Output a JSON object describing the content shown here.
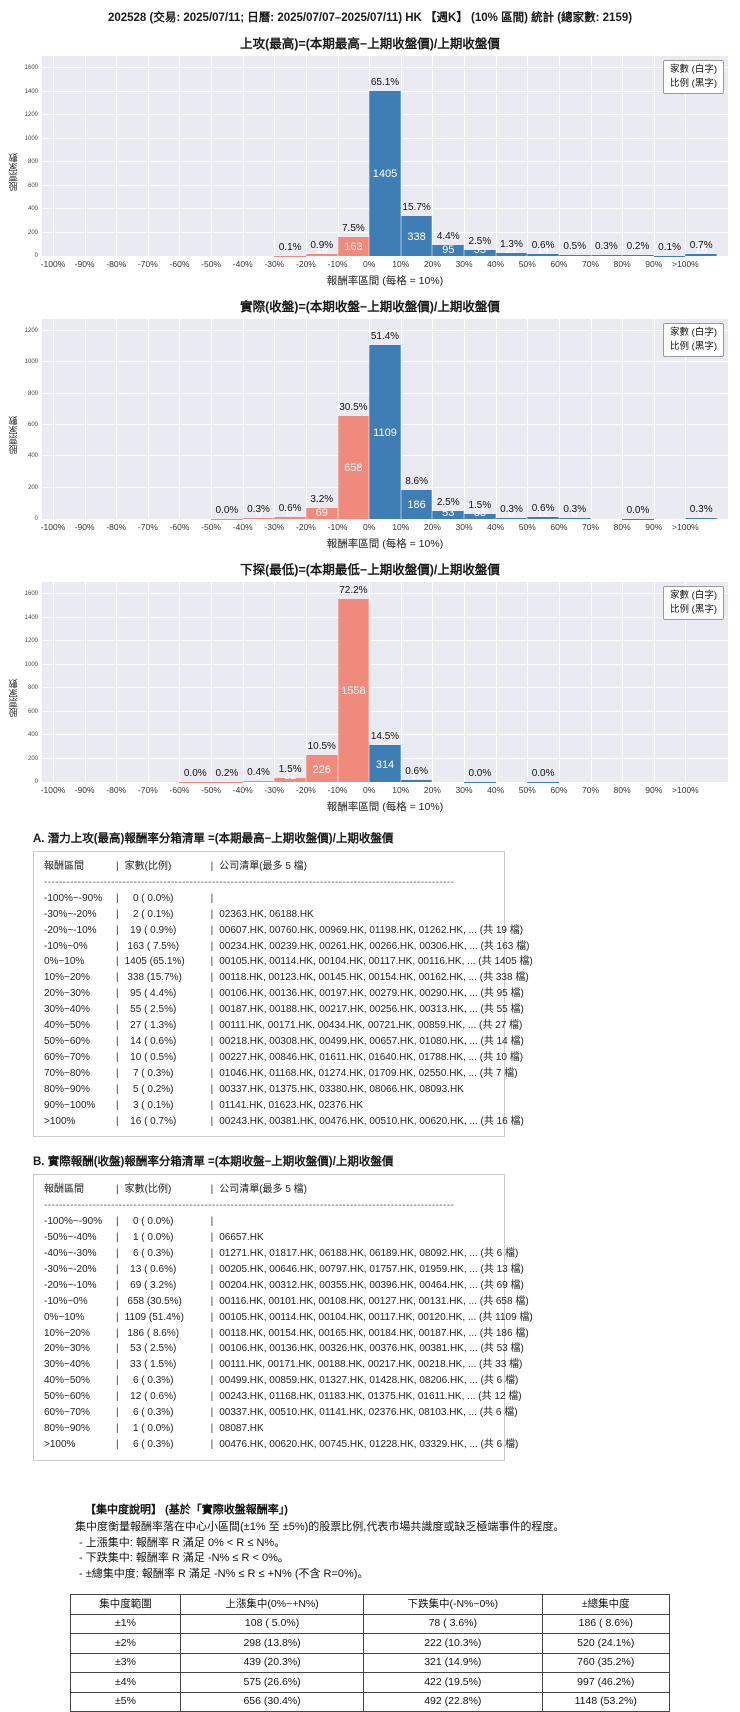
{
  "page_title": "202528 (交易: 2025/07/11; 日曆: 2025/07/07–2025/07/11) HK 【週K】 (10% 區間) 統計 (總家數: 2159)",
  "total_count": 2159,
  "colors": {
    "up_bar": "#3e7eb4",
    "down_bar": "#ef8a7c",
    "plot_bg": "#eaeaf2",
    "grid": "#ffffff"
  },
  "legend": [
    "家數 (白字)",
    "比例 (黑字)"
  ],
  "ylabel": "股票家數",
  "xlabel": "報酬率區間 (每格 = 10%)",
  "x_ticks": [
    "-100%",
    "-90%",
    "-80%",
    "-70%",
    "-60%",
    "-50%",
    "-40%",
    "-30%",
    "-20%",
    "-10%",
    "0%",
    "10%",
    "20%",
    "30%",
    "40%",
    "50%",
    "60%",
    "70%",
    "80%",
    "90%",
    ">100%"
  ],
  "chart_data": [
    {
      "type": "bar",
      "title": "上攻(最高)=(本期最高−上期收盤價)/上期收盤價",
      "ymax": 1600,
      "ytick_step": 200,
      "grid": true,
      "legend_position": "top-right",
      "bin_edges": [
        "-100%",
        "-90%",
        "-80%",
        "-70%",
        "-60%",
        "-50%",
        "-40%",
        "-30%",
        "-20%",
        "-10%",
        "0%",
        "10%",
        "20%",
        "30%",
        "40%",
        "50%",
        "60%",
        "70%",
        "80%",
        "90%",
        ">100%",
        "end"
      ],
      "counts": [
        0,
        0,
        0,
        0,
        0,
        0,
        0,
        2,
        19,
        163,
        1405,
        338,
        95,
        55,
        27,
        14,
        10,
        7,
        5,
        3,
        16
      ],
      "pcts": [
        "",
        "",
        "",
        "",
        "",
        "",
        "",
        "0.1%",
        "0.9%",
        "7.5%",
        "65.1%",
        "15.7%",
        "4.4%",
        "2.5%",
        "1.3%",
        "0.6%",
        "0.5%",
        "0.3%",
        "0.2%",
        "0.1%",
        "0.7%"
      ]
    },
    {
      "type": "bar",
      "title": "實際(收盤)=(本期收盤−上期收盤價)/上期收盤價",
      "ymax": 1200,
      "ytick_step": 200,
      "grid": true,
      "legend_position": "top-right",
      "bin_edges": [
        "-100%",
        "-90%",
        "-80%",
        "-70%",
        "-60%",
        "-50%",
        "-40%",
        "-30%",
        "-20%",
        "-10%",
        "0%",
        "10%",
        "20%",
        "30%",
        "40%",
        "50%",
        "60%",
        "70%",
        "80%",
        "90%",
        ">100%",
        "end"
      ],
      "counts": [
        0,
        0,
        0,
        0,
        0,
        1,
        6,
        13,
        69,
        658,
        1109,
        186,
        53,
        33,
        6,
        12,
        6,
        0,
        1,
        0,
        6
      ],
      "pcts": [
        "",
        "",
        "",
        "",
        "",
        "0.0%",
        "0.3%",
        "0.6%",
        "3.2%",
        "30.5%",
        "51.4%",
        "8.6%",
        "2.5%",
        "1.5%",
        "0.3%",
        "0.6%",
        "0.3%",
        "",
        "0.0%",
        "",
        "0.3%"
      ]
    },
    {
      "type": "bar",
      "title": "下探(最低)=(本期最低−上期收盤價)/上期收盤價",
      "ymax": 1600,
      "ytick_step": 200,
      "grid": true,
      "legend_position": "top-right",
      "bin_edges": [
        "-100%",
        "-90%",
        "-80%",
        "-70%",
        "-60%",
        "-50%",
        "-40%",
        "-30%",
        "-20%",
        "-10%",
        "0%",
        "10%",
        "20%",
        "30%",
        "40%",
        "50%",
        "60%",
        "70%",
        "80%",
        "90%",
        ">100%",
        "end"
      ],
      "counts": [
        0,
        0,
        0,
        0,
        1,
        4,
        9,
        32,
        226,
        1558,
        314,
        13,
        0,
        1,
        0,
        1,
        0,
        0,
        0,
        0,
        0
      ],
      "pcts": [
        "",
        "",
        "",
        "",
        "0.0%",
        "0.2%",
        "0.4%",
        "1.5%",
        "10.5%",
        "72.2%",
        "14.5%",
        "0.6%",
        "",
        "0.0%",
        "",
        "0.0%",
        "",
        "",
        "",
        "",
        ""
      ]
    }
  ],
  "bin_lists": [
    {
      "title": "A. 潛力上攻(最高)報酬率分箱清單 =(本期最高−上期收盤價)/上期收盤價",
      "header": [
        "報酬區間",
        "家數(比例)",
        "公司清單(最多 5 檔)"
      ],
      "separator": "--------------------------------------------------------------------------------------------------------------",
      "rows": [
        [
          "-100%~-90%",
          "   0 ( 0.0%)",
          ""
        ],
        [
          "-30%~-20%",
          "   2 ( 0.1%)",
          "02363.HK, 06188.HK"
        ],
        [
          "-20%~-10%",
          "  19 ( 0.9%)",
          "00607.HK, 00760.HK, 00969.HK, 01198.HK, 01262.HK, ... (共 19 檔)"
        ],
        [
          "-10%~0%",
          " 163 ( 7.5%)",
          "00234.HK, 00239.HK, 00261.HK, 00266.HK, 00306.HK, ... (共 163 檔)"
        ],
        [
          "0%~10%",
          "1405 (65.1%)",
          "00105.HK, 00114.HK, 00104.HK, 00117.HK, 00116.HK, ... (共 1405 檔)"
        ],
        [
          "10%~20%",
          " 338 (15.7%)",
          "00118.HK, 00123.HK, 00145.HK, 00154.HK, 00162.HK, ... (共 338 檔)"
        ],
        [
          "20%~30%",
          "  95 ( 4.4%)",
          "00106.HK, 00136.HK, 00197.HK, 00279.HK, 00290.HK, ... (共 95 檔)"
        ],
        [
          "30%~40%",
          "  55 ( 2.5%)",
          "00187.HK, 00188.HK, 00217.HK, 00256.HK, 00313.HK, ... (共 55 檔)"
        ],
        [
          "40%~50%",
          "  27 ( 1.3%)",
          "00111.HK, 00171.HK, 00434.HK, 00721.HK, 00859.HK, ... (共 27 檔)"
        ],
        [
          "50%~60%",
          "  14 ( 0.6%)",
          "00218.HK, 00308.HK, 00499.HK, 00657.HK, 01080.HK, ... (共 14 檔)"
        ],
        [
          "60%~70%",
          "  10 ( 0.5%)",
          "00227.HK, 00846.HK, 01611.HK, 01640.HK, 01788.HK, ... (共 10 檔)"
        ],
        [
          "70%~80%",
          "   7 ( 0.3%)",
          "01046.HK, 01168.HK, 01274.HK, 01709.HK, 02550.HK, ... (共 7 檔)"
        ],
        [
          "80%~90%",
          "   5 ( 0.2%)",
          "00337.HK, 01375.HK, 03380.HK, 08066.HK, 08093.HK"
        ],
        [
          "90%~100%",
          "   3 ( 0.1%)",
          "01141.HK, 01623.HK, 02376.HK"
        ],
        [
          ">100%",
          "  16 ( 0.7%)",
          "00243.HK, 00381.HK, 00476.HK, 00510.HK, 00620.HK, ... (共 16 檔)"
        ]
      ]
    },
    {
      "title": "B. 實際報酬(收盤)報酬率分箱清單 =(本期收盤−上期收盤價)/上期收盤價",
      "header": [
        "報酬區間",
        "家數(比例)",
        "公司清單(最多 5 檔)"
      ],
      "separator": "--------------------------------------------------------------------------------------------------------------",
      "rows": [
        [
          "-100%~-90%",
          "   0 ( 0.0%)",
          ""
        ],
        [
          "-50%~-40%",
          "   1 ( 0.0%)",
          "06657.HK"
        ],
        [
          "-40%~-30%",
          "   6 ( 0.3%)",
          "01271.HK, 01817.HK, 06188.HK, 06189.HK, 08092.HK, ... (共 6 檔)"
        ],
        [
          "-30%~-20%",
          "  13 ( 0.6%)",
          "00205.HK, 00646.HK, 00797.HK, 01757.HK, 01959.HK, ... (共 13 檔)"
        ],
        [
          "-20%~-10%",
          "  69 ( 3.2%)",
          "00204.HK, 00312.HK, 00355.HK, 00396.HK, 00464.HK, ... (共 69 檔)"
        ],
        [
          "-10%~0%",
          " 658 (30.5%)",
          "00116.HK, 00101.HK, 00108.HK, 00127.HK, 00131.HK, ... (共 658 檔)"
        ],
        [
          "0%~10%",
          "1109 (51.4%)",
          "00105.HK, 00114.HK, 00104.HK, 00117.HK, 00120.HK, ... (共 1109 檔)"
        ],
        [
          "10%~20%",
          " 186 ( 8.6%)",
          "00118.HK, 00154.HK, 00165.HK, 00184.HK, 00187.HK, ... (共 186 檔)"
        ],
        [
          "20%~30%",
          "  53 ( 2.5%)",
          "00106.HK, 00136.HK, 00326.HK, 00376.HK, 00381.HK, ... (共 53 檔)"
        ],
        [
          "30%~40%",
          "  33 ( 1.5%)",
          "00111.HK, 00171.HK, 00188.HK, 00217.HK, 00218.HK, ... (共 33 檔)"
        ],
        [
          "40%~50%",
          "   6 ( 0.3%)",
          "00499.HK, 00859.HK, 01327.HK, 01428.HK, 08206.HK, ... (共 6 檔)"
        ],
        [
          "50%~60%",
          "  12 ( 0.6%)",
          "00243.HK, 01168.HK, 01183.HK, 01375.HK, 01611.HK, ... (共 12 檔)"
        ],
        [
          "60%~70%",
          "   6 ( 0.3%)",
          "00337.HK, 00510.HK, 01141.HK, 02376.HK, 08103.HK, ... (共 6 檔)"
        ],
        [
          "80%~90%",
          "   1 ( 0.0%)",
          "08087.HK"
        ],
        [
          ">100%",
          "   6 ( 0.3%)",
          "00476.HK, 00620.HK, 00745.HK, 01228.HK, 03329.HK, ... (共 6 檔)"
        ]
      ]
    }
  ],
  "concentration": {
    "heading": "【集中度說明】 (基於「實際收盤報酬率」)",
    "desc": "集中度衡量報酬率落在中心小區間(±1% 至 ±5%)的股票比例,代表市場共識度或缺乏極端事件的程度。",
    "bullets": [
      "- 上漲集中: 報酬率 R 滿足 0% < R ≤ N%。",
      "- 下跌集中: 報酬率 R 滿足 -N% ≤ R < 0%。",
      "- ±總集中度: 報酬率 R 滿足 -N% ≤ R ≤ +N% (不含 R=0%)。"
    ],
    "table": {
      "headers": [
        "集中度範圍",
        "上漲集中(0%~+N%)",
        "下跌集中(-N%~0%)",
        "±總集中度"
      ],
      "rows": [
        [
          "±1%",
          "108 ( 5.0%)",
          "78 ( 3.6%)",
          "186 ( 8.6%)"
        ],
        [
          "±2%",
          "298 (13.8%)",
          "222 (10.3%)",
          "520 (24.1%)"
        ],
        [
          "±3%",
          "439 (20.3%)",
          "321 (14.9%)",
          "760 (35.2%)"
        ],
        [
          "±4%",
          "575 (26.6%)",
          "422 (19.5%)",
          "997 (46.2%)"
        ],
        [
          "±5%",
          "656 (30.4%)",
          "492 (22.8%)",
          "1148 (53.2%)"
        ]
      ]
    }
  }
}
